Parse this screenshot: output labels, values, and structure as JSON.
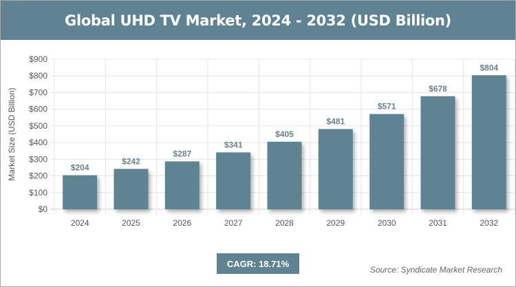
{
  "chart_data": {
    "type": "bar",
    "title": "Global UHD TV Market, 2024 - 2032 (USD Billion)",
    "xlabel": "",
    "ylabel": "Market Size (USD Billion)",
    "categories": [
      "2024",
      "2025",
      "2026",
      "2027",
      "2028",
      "2029",
      "2030",
      "2031",
      "2032"
    ],
    "values": [
      204,
      242,
      287,
      341,
      405,
      481,
      571,
      678,
      804
    ],
    "data_labels": [
      "$204",
      "$242",
      "$287",
      "$341",
      "$405",
      "$481",
      "$571",
      "$678",
      "$804"
    ],
    "ylim": [
      0,
      900
    ],
    "yticks": [
      0,
      100,
      200,
      300,
      400,
      500,
      600,
      700,
      800,
      900
    ],
    "ytick_labels": [
      "$0",
      "$100",
      "$200",
      "$300",
      "$400",
      "$500",
      "$600",
      "$700",
      "$800",
      "$900"
    ],
    "grid": true,
    "bar_color": "#5f8393"
  },
  "cagr": "CAGR: 18.71%",
  "source": "Source: Syndicate Market Research"
}
